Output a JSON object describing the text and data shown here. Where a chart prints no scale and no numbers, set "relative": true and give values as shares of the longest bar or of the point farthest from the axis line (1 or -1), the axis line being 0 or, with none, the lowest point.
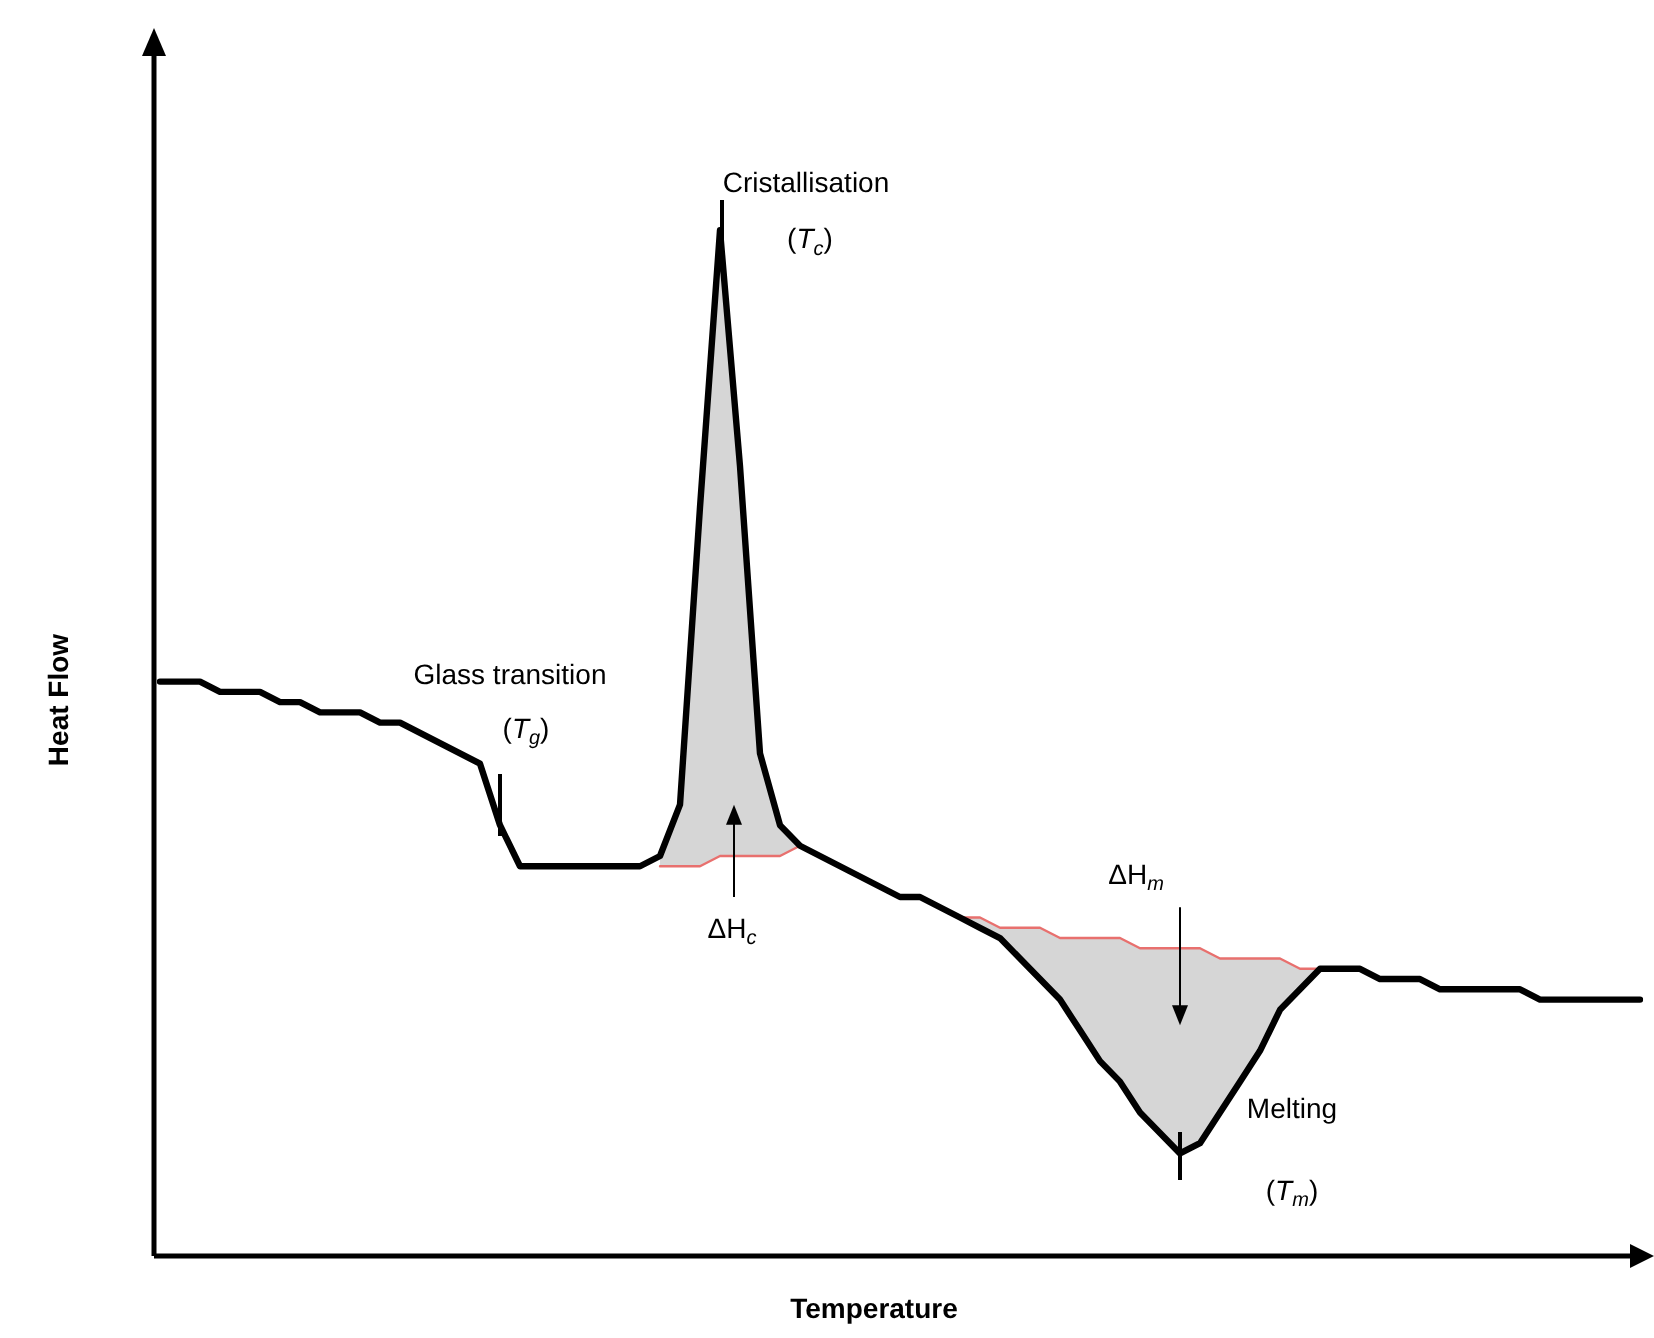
{
  "chart_data": {
    "type": "line",
    "relative": true,
    "xlabel": "Temperature",
    "ylabel": "Heat Flow",
    "categories": [
      null,
      null,
      null,
      null,
      null,
      null,
      null,
      null,
      null,
      null,
      null,
      null,
      null,
      null,
      null,
      null,
      null,
      null,
      null,
      null,
      null,
      null,
      null,
      null,
      null,
      null,
      null,
      null,
      null,
      null,
      null,
      null,
      null,
      null,
      null,
      null,
      null,
      null,
      null,
      null,
      null,
      null,
      null,
      null,
      null,
      null,
      null,
      null,
      null,
      null,
      null,
      null,
      null,
      null,
      null,
      null,
      null,
      null,
      null,
      null,
      null,
      null,
      null,
      null,
      null,
      null,
      null,
      null,
      null,
      null,
      null,
      null,
      null,
      null,
      null
    ],
    "series": [
      {
        "color": "#000000",
        "values": [
          0.56,
          0.56,
          0.56,
          0.55,
          0.55,
          0.55,
          0.54,
          0.54,
          0.53,
          0.53,
          0.53,
          0.52,
          0.52,
          0.51,
          0.5,
          0.49,
          0.48,
          0.42,
          0.38,
          0.38,
          0.38,
          0.38,
          0.38,
          0.38,
          0.38,
          0.39,
          0.44,
          0.73,
          1,
          0.77,
          0.49,
          0.42,
          0.4,
          0.39,
          0.38,
          0.37,
          0.36,
          0.35,
          0.35,
          0.34,
          0.33,
          0.32,
          0.31,
          0.29,
          0.27,
          0.25,
          0.22,
          0.19,
          0.17,
          0.14,
          0.12,
          0.1,
          0.11,
          0.14,
          0.17,
          0.2,
          0.24,
          0.26,
          0.28,
          0.28,
          0.28,
          0.27,
          0.27,
          0.27,
          0.26,
          0.26,
          0.26,
          0.26,
          0.26,
          0.25,
          0.25,
          0.25,
          0.25,
          0.25,
          0.25
        ]
      },
      {
        "color": "#e8706e",
        "values": [
          null,
          null,
          null,
          null,
          null,
          null,
          null,
          null,
          null,
          null,
          null,
          null,
          null,
          null,
          null,
          null,
          null,
          null,
          null,
          null,
          null,
          null,
          null,
          null,
          null,
          0.38,
          0.38,
          0.38,
          0.39,
          0.39,
          0.39,
          0.39,
          0.4,
          null,
          null,
          null,
          null,
          null,
          null,
          null,
          0.33,
          0.33,
          0.32,
          0.32,
          0.32,
          0.31,
          0.31,
          0.31,
          0.31,
          0.3,
          0.3,
          0.3,
          0.3,
          0.29,
          0.29,
          0.29,
          0.29,
          0.28,
          0.28,
          null,
          null,
          null,
          null,
          null,
          null,
          null,
          null,
          null,
          null,
          null,
          null,
          null,
          null,
          null,
          null
        ],
        "lower": [
          null,
          null,
          null,
          null,
          null,
          null,
          null,
          null,
          null,
          null,
          null,
          null,
          null,
          null,
          null,
          null,
          null,
          null,
          null,
          null,
          null,
          null,
          null,
          null,
          null,
          0.38,
          0.38,
          0.38,
          0.39,
          0.39,
          0.39,
          0.39,
          0.4,
          null,
          null,
          null,
          null,
          null,
          null,
          null,
          0.33,
          0.32,
          0.31,
          0.29,
          0.27,
          0.25,
          0.22,
          0.19,
          0.17,
          0.14,
          0.12,
          0.1,
          0.11,
          0.14,
          0.17,
          0.2,
          0.24,
          0.26,
          0.28,
          null,
          null,
          null,
          null,
          null,
          null,
          null,
          null,
          null,
          null,
          null,
          null,
          null,
          null,
          null,
          null
        ],
        "upper": [
          null,
          null,
          null,
          null,
          null,
          null,
          null,
          null,
          null,
          null,
          null,
          null,
          null,
          null,
          null,
          null,
          null,
          null,
          null,
          null,
          null,
          null,
          null,
          null,
          null,
          0.39,
          0.44,
          0.73,
          1,
          0.77,
          0.49,
          0.42,
          0.4,
          null,
          null,
          null,
          null,
          null,
          null,
          null,
          0.33,
          0.33,
          0.32,
          0.32,
          0.32,
          0.31,
          0.31,
          0.31,
          0.31,
          0.3,
          0.3,
          0.3,
          0.3,
          0.29,
          0.29,
          0.29,
          0.29,
          0.28,
          0.28,
          null,
          null,
          null,
          null,
          null,
          null,
          null,
          null,
          null,
          null,
          null,
          null,
          null,
          null,
          null,
          null
        ]
      }
    ],
    "annotations": [
      "Glass transition",
      "(T$_{g}$)",
      "Cristallisation",
      "(T$_{c}$)",
      "ΔH$_{c}$",
      "ΔH$_{m}$",
      "Melting",
      "(T$_{m}$)"
    ]
  }
}
